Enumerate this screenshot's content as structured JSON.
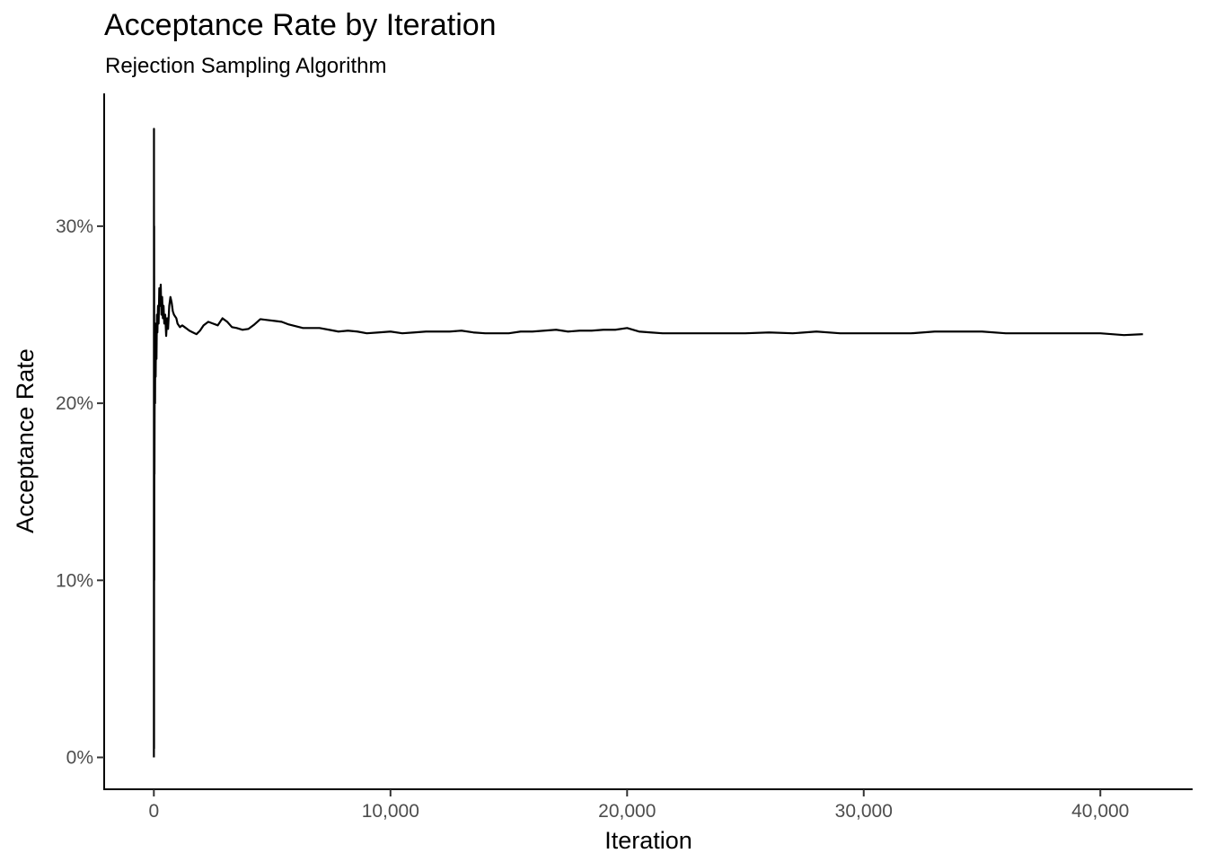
{
  "chart_data": {
    "type": "line",
    "title": "Acceptance Rate by Iteration",
    "subtitle": "Rejection Sampling Algorithm",
    "xlabel": "Iteration",
    "ylabel": "Acceptance Rate",
    "xlim": [
      -2100,
      43900
    ],
    "ylim": [
      -0.018,
      0.375
    ],
    "x_ticks": [
      0,
      10000,
      20000,
      30000,
      40000
    ],
    "x_tick_labels": [
      "0",
      "10,000",
      "20,000",
      "30,000",
      "40,000"
    ],
    "y_ticks": [
      0,
      0.1,
      0.2,
      0.3
    ],
    "y_tick_labels": [
      "0%",
      "10%",
      "20%",
      "30%"
    ],
    "grid": false,
    "line_color": "#000000",
    "series": [
      {
        "x": [
          1,
          5,
          8,
          12,
          15,
          20,
          25,
          30,
          40,
          50,
          60,
          75,
          90,
          110,
          130,
          150,
          175,
          200,
          230,
          260,
          290,
          320,
          350,
          380,
          410,
          440,
          480,
          520,
          560,
          600,
          650,
          700,
          750,
          800,
          850,
          900,
          950,
          1000,
          1100,
          1200,
          1300,
          1400,
          1500,
          1650,
          1800,
          1950,
          2100,
          2300,
          2500,
          2700,
          2900,
          3100,
          3300,
          3500,
          3750,
          4000,
          4250,
          4500,
          4800,
          5100,
          5400,
          5700,
          6000,
          6300,
          6600,
          7000,
          7400,
          7800,
          8200,
          8600,
          9000,
          9500,
          10000,
          10500,
          11000,
          11500,
          12000,
          12500,
          13000,
          13500,
          14000,
          14500,
          15000,
          15500,
          16000,
          16500,
          17000,
          17500,
          18000,
          18500,
          19000,
          19500,
          20000,
          20500,
          21000,
          21500,
          22000,
          23000,
          24000,
          25000,
          26000,
          27000,
          28000,
          29000,
          30000,
          31000,
          32000,
          33000,
          34000,
          35000,
          36000,
          37000,
          38000,
          39000,
          40000,
          41000,
          41800
        ],
        "y": [
          0.0,
          0.355,
          0.005,
          0.3,
          0.1,
          0.22,
          0.16,
          0.19,
          0.23,
          0.2,
          0.245,
          0.215,
          0.24,
          0.225,
          0.25,
          0.24,
          0.255,
          0.245,
          0.265,
          0.255,
          0.267,
          0.25,
          0.26,
          0.248,
          0.255,
          0.245,
          0.25,
          0.238,
          0.248,
          0.242,
          0.255,
          0.26,
          0.257,
          0.252,
          0.25,
          0.249,
          0.248,
          0.245,
          0.243,
          0.244,
          0.243,
          0.242,
          0.241,
          0.24,
          0.239,
          0.241,
          0.244,
          0.246,
          0.245,
          0.244,
          0.248,
          0.246,
          0.243,
          0.2425,
          0.2415,
          0.242,
          0.2445,
          0.2475,
          0.247,
          0.2465,
          0.246,
          0.2445,
          0.2435,
          0.2425,
          0.2425,
          0.2425,
          0.2415,
          0.2405,
          0.241,
          0.2405,
          0.2395,
          0.24,
          0.2405,
          0.2395,
          0.24,
          0.2405,
          0.2405,
          0.2405,
          0.241,
          0.24,
          0.2395,
          0.2395,
          0.2395,
          0.2405,
          0.2405,
          0.241,
          0.2415,
          0.2405,
          0.241,
          0.241,
          0.2415,
          0.2415,
          0.2425,
          0.2405,
          0.24,
          0.2395,
          0.2395,
          0.2395,
          0.2395,
          0.2395,
          0.24,
          0.2395,
          0.2405,
          0.2395,
          0.2395,
          0.2395,
          0.2395,
          0.2405,
          0.2405,
          0.2405,
          0.2395,
          0.2395,
          0.2395,
          0.2395,
          0.2395,
          0.2385,
          0.239
        ]
      }
    ]
  }
}
